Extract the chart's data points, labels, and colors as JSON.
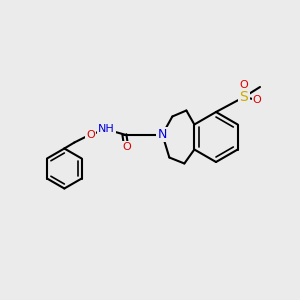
{
  "bg_color": "#ebebeb",
  "bond_color": "#000000",
  "bond_width": 1.5,
  "atom_colors": {
    "N": "#0000dd",
    "O": "#dd0000",
    "S": "#ccaa00",
    "H": "#7a9a9a",
    "C": "#000000"
  },
  "font_size": 8
}
